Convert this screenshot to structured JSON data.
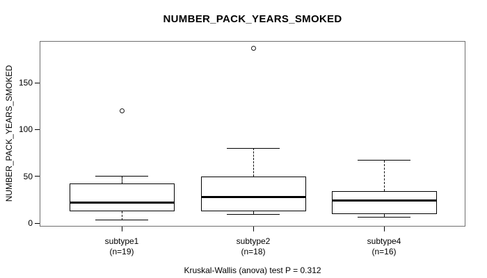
{
  "chart_data": {
    "type": "boxplot",
    "title": "NUMBER_PACK_YEARS_SMOKED",
    "ylabel": "NUMBER_PACK_YEARS_SMOKED",
    "caption": "Kruskal-Wallis (anova) test P = 0.312",
    "y_ticks": [
      0,
      50,
      100,
      150
    ],
    "ylim": [
      -3.7,
      194.6
    ],
    "grid": false,
    "legend": "none",
    "colors": {
      "line": "#000000",
      "frame": "#6e6e6e",
      "box_fill": "#ffffff",
      "background": "#ffffff"
    },
    "groups": [
      {
        "label": "subtype1",
        "n_label": "(n=19)",
        "n": 19,
        "whisker_low": 3,
        "q1": 13,
        "median": 22,
        "q3": 42,
        "whisker_high": 50,
        "outliers": [
          120
        ]
      },
      {
        "label": "subtype2",
        "n_label": "(n=18)",
        "n": 18,
        "whisker_low": 9,
        "q1": 13,
        "median": 28,
        "q3": 50,
        "whisker_high": 80,
        "outliers": [
          187
        ]
      },
      {
        "label": "subtype4",
        "n_label": "(n=16)",
        "n": 16,
        "whisker_low": 6,
        "q1": 10,
        "median": 24,
        "q3": 34,
        "whisker_high": 67,
        "outliers": []
      }
    ]
  }
}
